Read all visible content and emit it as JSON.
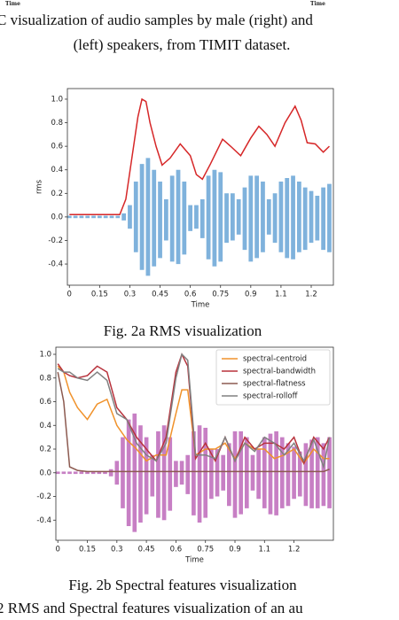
{
  "page_header": {
    "time_labels": [
      "Time",
      "Time"
    ],
    "caption_lines": [
      "C visualization of audio samples by male (right) and",
      "(left) speakers, from TIMIT dataset."
    ]
  },
  "chart_data": [
    {
      "type": "line",
      "xlabel": "Time",
      "ylabel": "rms",
      "xlim": [
        -0.01,
        1.31
      ],
      "ylim": [
        -0.58,
        1.09
      ],
      "xticks": [
        0,
        0.15,
        0.3,
        0.45,
        0.6,
        0.75,
        0.9,
        {
          "value": 1.05,
          "label": "1.1"
        },
        1.2
      ],
      "yticks": [
        {
          "value": 1,
          "label": "1.0"
        },
        0.8,
        0.6,
        0.4,
        0.2,
        {
          "value": 0,
          "label": "0.0"
        },
        -0.2,
        -0.4
      ],
      "grid": false,
      "x": [
        0,
        0.05,
        0.1,
        0.15,
        0.2,
        0.25,
        0.28,
        0.31,
        0.34,
        0.36,
        0.38,
        0.4,
        0.43,
        0.46,
        0.5,
        0.55,
        0.6,
        0.63,
        0.66,
        0.7,
        0.76,
        0.8,
        0.85,
        0.9,
        0.94,
        0.98,
        1.02,
        1.07,
        1.12,
        1.15,
        1.18,
        1.22,
        1.26,
        1.29
      ],
      "series": [
        {
          "color": "#d62728",
          "values": [
            0.02,
            0.02,
            0.02,
            0.02,
            0.02,
            0.02,
            0.15,
            0.5,
            0.85,
            1.0,
            0.98,
            0.8,
            0.6,
            0.44,
            0.5,
            0.62,
            0.52,
            0.36,
            0.32,
            0.45,
            0.66,
            0.6,
            0.52,
            0.67,
            0.77,
            0.7,
            0.6,
            0.8,
            0.94,
            0.82,
            0.63,
            0.62,
            0.55,
            0.6
          ]
        }
      ],
      "waveform": {
        "color": "#7fb2dc",
        "x": [
          0,
          0.03,
          0.06,
          0.09,
          0.12,
          0.15,
          0.18,
          0.21,
          0.24,
          0.27,
          0.3,
          0.33,
          0.36,
          0.39,
          0.42,
          0.45,
          0.48,
          0.51,
          0.54,
          0.57,
          0.6,
          0.63,
          0.66,
          0.69,
          0.72,
          0.75,
          0.78,
          0.81,
          0.84,
          0.87,
          0.9,
          0.93,
          0.96,
          0.99,
          1.02,
          1.05,
          1.08,
          1.11,
          1.14,
          1.17,
          1.2,
          1.23,
          1.26,
          1.29
        ],
        "upper": [
          0.01,
          0.01,
          0.01,
          0.01,
          0.01,
          0.01,
          0.01,
          0.01,
          0.01,
          0.03,
          0.1,
          0.3,
          0.45,
          0.5,
          0.4,
          0.3,
          0.15,
          0.35,
          0.4,
          0.3,
          0.1,
          0.1,
          0.15,
          0.35,
          0.4,
          0.38,
          0.2,
          0.2,
          0.15,
          0.25,
          0.35,
          0.35,
          0.3,
          0.15,
          0.2,
          0.3,
          0.33,
          0.35,
          0.3,
          0.25,
          0.22,
          0.18,
          0.25,
          0.28
        ],
        "lower": [
          -0.01,
          -0.01,
          -0.01,
          -0.01,
          -0.01,
          -0.01,
          -0.01,
          -0.01,
          -0.01,
          -0.03,
          -0.1,
          -0.3,
          -0.45,
          -0.5,
          -0.42,
          -0.35,
          -0.2,
          -0.38,
          -0.4,
          -0.32,
          -0.12,
          -0.1,
          -0.18,
          -0.36,
          -0.42,
          -0.38,
          -0.22,
          -0.2,
          -0.15,
          -0.28,
          -0.38,
          -0.35,
          -0.3,
          -0.15,
          -0.22,
          -0.3,
          -0.35,
          -0.36,
          -0.3,
          -0.28,
          -0.22,
          -0.2,
          -0.28,
          -0.3
        ]
      }
    },
    {
      "type": "line",
      "xlabel": "Time",
      "legend": "upper right",
      "xlim": [
        -0.01,
        1.4
      ],
      "ylim": [
        -0.57,
        1.06
      ],
      "xticks": [
        0,
        0.15,
        0.3,
        0.45,
        0.6,
        0.75,
        0.9,
        {
          "value": 1.05,
          "label": "1.1"
        },
        1.2
      ],
      "yticks": [
        {
          "value": 1,
          "label": "1.0"
        },
        0.8,
        0.6,
        0.4,
        0.2,
        {
          "value": 0,
          "label": "0.0"
        },
        -0.2,
        -0.4
      ],
      "grid": false,
      "x": [
        0,
        0.03,
        0.06,
        0.1,
        0.15,
        0.2,
        0.25,
        0.3,
        0.35,
        0.4,
        0.45,
        0.5,
        0.55,
        0.6,
        0.63,
        0.66,
        0.7,
        0.75,
        0.8,
        0.85,
        0.9,
        0.95,
        1.0,
        1.05,
        1.1,
        1.15,
        1.2,
        1.25,
        1.3,
        1.35,
        1.38
      ],
      "series": [
        {
          "name": "spectral-centroid",
          "color": "#f0922b",
          "values": [
            0.9,
            0.85,
            0.68,
            0.55,
            0.45,
            0.58,
            0.62,
            0.4,
            0.28,
            0.2,
            0.1,
            0.15,
            0.15,
            0.5,
            0.7,
            0.7,
            0.15,
            0.2,
            0.2,
            0.25,
            0.12,
            0.25,
            0.2,
            0.2,
            0.12,
            0.15,
            0.2,
            0.08,
            0.2,
            0.12,
            0.12
          ]
        },
        {
          "name": "spectral-bandwidth",
          "color": "#b8323c",
          "values": [
            0.92,
            0.85,
            0.82,
            0.8,
            0.82,
            0.9,
            0.85,
            0.55,
            0.45,
            0.3,
            0.2,
            0.1,
            0.3,
            0.85,
            1.0,
            0.9,
            0.12,
            0.25,
            0.1,
            0.3,
            0.1,
            0.3,
            0.2,
            0.25,
            0.25,
            0.2,
            0.3,
            0.08,
            0.3,
            0.2,
            0.3
          ]
        },
        {
          "name": "spectral-flatness",
          "color": "#8c5a50",
          "values": [
            0.85,
            0.6,
            0.05,
            0.02,
            0.01,
            0.01,
            0.01,
            0.01,
            0.01,
            0.01,
            0.01,
            0.01,
            0.01,
            0.01,
            0.01,
            0.01,
            0.01,
            0.01,
            0.01,
            0.01,
            0.01,
            0.01,
            0.01,
            0.01,
            0.01,
            0.01,
            0.01,
            0.01,
            0.01,
            0.01,
            0.03
          ]
        },
        {
          "name": "spectral-rolloff",
          "color": "#808080",
          "values": [
            0.88,
            0.85,
            0.85,
            0.8,
            0.78,
            0.85,
            0.78,
            0.5,
            0.45,
            0.25,
            0.15,
            0.1,
            0.25,
            0.8,
            1.0,
            0.95,
            0.15,
            0.15,
            0.12,
            0.3,
            0.1,
            0.25,
            0.18,
            0.3,
            0.25,
            0.15,
            0.25,
            0.1,
            0.28,
            0.05,
            0.3
          ]
        }
      ],
      "waveform": {
        "color": "#c77fc4",
        "x": [
          0,
          0.03,
          0.06,
          0.09,
          0.12,
          0.15,
          0.18,
          0.21,
          0.24,
          0.27,
          0.3,
          0.33,
          0.36,
          0.39,
          0.42,
          0.45,
          0.48,
          0.51,
          0.54,
          0.57,
          0.6,
          0.63,
          0.66,
          0.69,
          0.72,
          0.75,
          0.78,
          0.81,
          0.84,
          0.87,
          0.9,
          0.93,
          0.96,
          0.99,
          1.02,
          1.05,
          1.08,
          1.11,
          1.14,
          1.17,
          1.2,
          1.23,
          1.26,
          1.29,
          1.32,
          1.35,
          1.38
        ],
        "upper": [
          0.01,
          0.01,
          0.01,
          0.01,
          0.01,
          0.01,
          0.01,
          0.01,
          0.01,
          0.03,
          0.1,
          0.3,
          0.45,
          0.5,
          0.4,
          0.3,
          0.15,
          0.35,
          0.4,
          0.3,
          0.1,
          0.1,
          0.15,
          0.35,
          0.4,
          0.38,
          0.2,
          0.2,
          0.15,
          0.25,
          0.35,
          0.35,
          0.3,
          0.15,
          0.2,
          0.3,
          0.33,
          0.35,
          0.3,
          0.25,
          0.22,
          0.18,
          0.25,
          0.28,
          0.3,
          0.25,
          0.3
        ],
        "lower": [
          -0.01,
          -0.01,
          -0.01,
          -0.01,
          -0.01,
          -0.01,
          -0.01,
          -0.01,
          -0.01,
          -0.03,
          -0.1,
          -0.3,
          -0.45,
          -0.5,
          -0.42,
          -0.35,
          -0.2,
          -0.38,
          -0.4,
          -0.32,
          -0.12,
          -0.1,
          -0.18,
          -0.36,
          -0.42,
          -0.38,
          -0.22,
          -0.2,
          -0.15,
          -0.28,
          -0.38,
          -0.35,
          -0.3,
          -0.15,
          -0.22,
          -0.3,
          -0.35,
          -0.36,
          -0.3,
          -0.28,
          -0.22,
          -0.2,
          -0.28,
          -0.3,
          -0.3,
          -0.28,
          -0.3
        ]
      }
    }
  ],
  "figure_captions": [
    "Fig. 2a RMS visualization",
    "Fig. 2b Spectral features visualization"
  ],
  "footer_caption": "2 RMS and Spectral features visualization of an au"
}
